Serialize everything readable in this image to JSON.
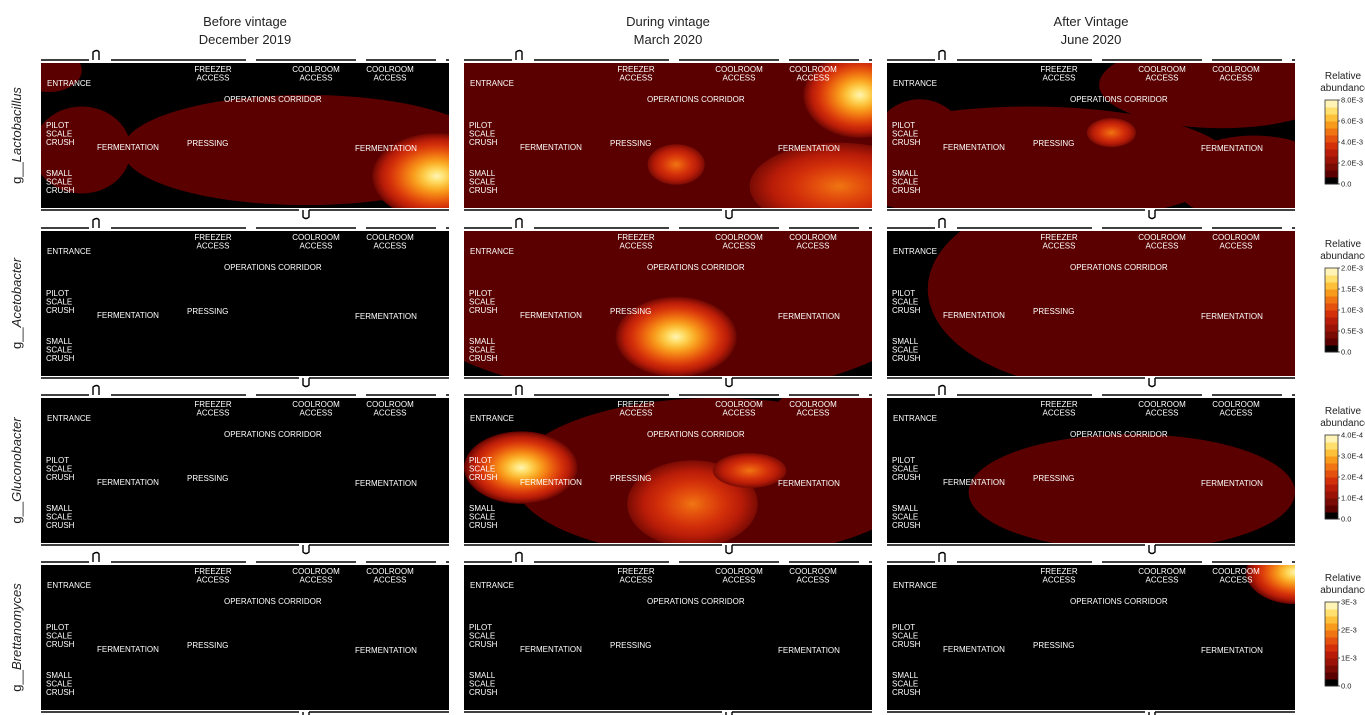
{
  "columns": [
    {
      "title_line1": "Before vintage",
      "title_line2": "December 2019"
    },
    {
      "title_line1": "During vintage",
      "title_line2": "March 2020"
    },
    {
      "title_line1": "After Vintage",
      "title_line2": "June 2020"
    }
  ],
  "rows": [
    {
      "prefix": "g__",
      "genus": "Lactobacillus"
    },
    {
      "prefix": "g__",
      "genus": "Acetobacter"
    },
    {
      "prefix": "g__",
      "genus": "Gluconobacter"
    },
    {
      "prefix": "g__",
      "genus": "Brettanomyces"
    }
  ],
  "zones": {
    "entrance": "ENTRANCE",
    "freezer": [
      "FREEZER",
      "ACCESS"
    ],
    "coolroom": [
      "COOLROOM",
      "ACCESS"
    ],
    "corridor": "OPERATIONS CORRIDOR",
    "pilot": [
      "PILOT",
      "SCALE",
      "CRUSH"
    ],
    "fermentation": "FERMENTATION",
    "pressing": "PRESSING",
    "small": [
      "SMALL",
      "SCALE",
      "CRUSH"
    ]
  },
  "colorbar_title": [
    "Relative",
    "abundance"
  ],
  "colors": {
    "background": "#000000",
    "ramp": [
      "#000000",
      "#5a0000",
      "#7a0b04",
      "#9a1306",
      "#b81c08",
      "#d3300a",
      "#e4500d",
      "#f07512",
      "#f89b1c",
      "#fcc03a",
      "#ffe06e",
      "#fff4b5"
    ]
  },
  "chart_data": {
    "type": "heatmap",
    "description_axes": "floor-plan contour maps of relative abundance",
    "columns": [
      "Before vintage December 2019",
      "During vintage March 2020",
      "After Vintage June 2020"
    ],
    "rows": [
      "g__Lactobacillus",
      "g__Acetobacter",
      "g__Gluconobacter",
      "g__Brettanomyces"
    ],
    "colorbars": [
      {
        "row": "g__Lactobacillus",
        "max": 0.008,
        "ticks": [
          "0.0",
          "2.0E-3",
          "4.0E-3",
          "6.0E-3",
          "8.0E-3"
        ]
      },
      {
        "row": "g__Acetobacter",
        "max": 0.002,
        "ticks": [
          "0.0",
          "0.5E-3",
          "1.0E-3",
          "1.5E-3",
          "2.0E-3"
        ]
      },
      {
        "row": "g__Gluconobacter",
        "max": 0.0004,
        "ticks": [
          "0.0",
          "1.0E-4",
          "2.0E-4",
          "3.0E-4",
          "4.0E-4"
        ]
      },
      {
        "row": "g__Brettanomyces",
        "max": 0.003,
        "ticks": [
          "0.0",
          "1E-3",
          "2E-3",
          "3E-3"
        ]
      }
    ],
    "hotspots": [
      {
        "row": 0,
        "col": 0,
        "zone": "FERMENTATION (right)",
        "level": 1.0
      },
      {
        "row": 0,
        "col": 1,
        "zone": "COOLROOM ACCESS",
        "level": 0.9
      },
      {
        "row": 0,
        "col": 1,
        "zone": "FERMENTATION (right)",
        "level": 0.45
      },
      {
        "row": 1,
        "col": 1,
        "zone": "PRESSING",
        "level": 0.95
      },
      {
        "row": 2,
        "col": 1,
        "zone": "PILOT SCALE CRUSH",
        "level": 0.95
      },
      {
        "row": 2,
        "col": 1,
        "zone": "PRESSING",
        "level": 0.85
      },
      {
        "row": 3,
        "col": 2,
        "zone": "COOLROOM ACCESS",
        "level": 0.55
      }
    ]
  }
}
